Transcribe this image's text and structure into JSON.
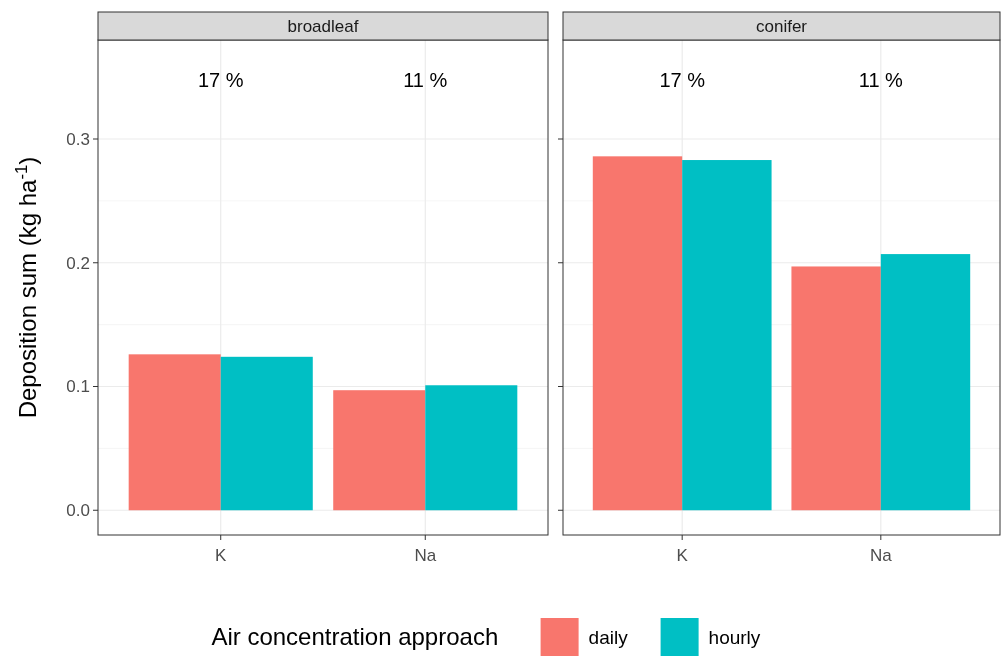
{
  "chart_data": [
    {
      "type": "bar",
      "title": "broadleaf",
      "ylabel": "Deposition sum (kg ha$^{-1}$)",
      "categories": [
        "K",
        "Na"
      ],
      "series": [
        {
          "color": "#f8766d",
          "values": [
            0.126,
            0.097
          ]
        },
        {
          "color": "#00bfc4",
          "values": [
            0.124,
            0.101
          ]
        }
      ],
      "ylim": [
        -0.02,
        0.38
      ],
      "yticks": [
        {
          "value": 0,
          "label": "0.0"
        },
        0.1,
        0.2,
        0.3
      ],
      "grid": true,
      "annotations": [
        "17 %",
        "11 %"
      ]
    },
    {
      "type": "bar",
      "title": "conifer",
      "categories": [
        "K",
        "Na"
      ],
      "series": [
        {
          "name": "daily",
          "color": "#f8766d",
          "values": [
            0.286,
            0.197
          ]
        },
        {
          "name": "hourly",
          "color": "#00bfc4",
          "values": [
            0.283,
            0.207
          ]
        }
      ],
      "ylim": [
        -0.02,
        0.38
      ],
      "yticks": [
        {
          "value": 0,
          "label": null
        },
        {
          "value": 0.1,
          "label": null
        },
        {
          "value": 0.2,
          "label": null
        },
        {
          "value": 0.3,
          "label": null
        }
      ],
      "grid": true,
      "tick_labels": "x",
      "legend": "bottom",
      "legend_title": "Air concentration approach",
      "annotations": [
        "17 %",
        "11 %"
      ]
    }
  ]
}
